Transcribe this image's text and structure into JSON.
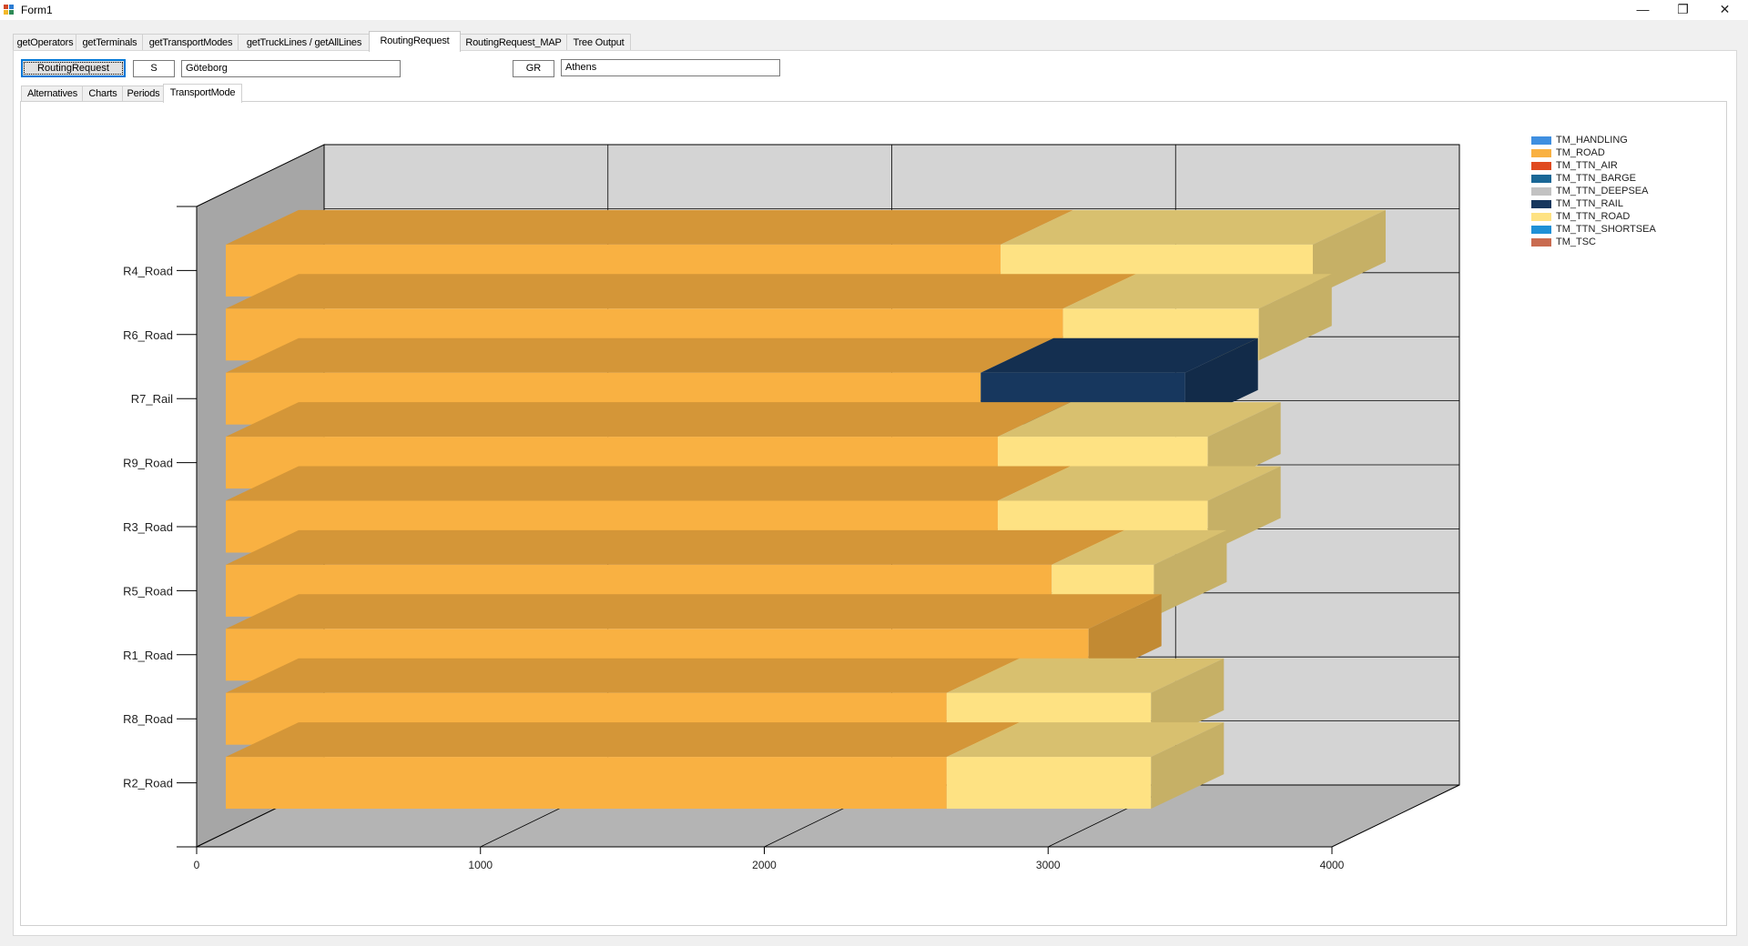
{
  "window": {
    "title": "Form1"
  },
  "tabs": [
    {
      "label": "getOperators"
    },
    {
      "label": "getTerminals"
    },
    {
      "label": "getTransportModes"
    },
    {
      "label": "getTruckLines / getAllLines"
    },
    {
      "label": "RoutingRequest"
    },
    {
      "label": "RoutingRequest_MAP"
    },
    {
      "label": "Tree Output"
    }
  ],
  "toolbar": {
    "routing_button": "RoutingRequest",
    "origin_country": "S",
    "origin_city": "Göteborg",
    "dest_country": "GR",
    "dest_city": "Athens"
  },
  "subtabs": [
    {
      "label": "Alternatives"
    },
    {
      "label": "Charts"
    },
    {
      "label": "Periods"
    },
    {
      "label": "TransportMode"
    }
  ],
  "legend": [
    {
      "label": "TM_HANDLING",
      "color": "#3f8fe0"
    },
    {
      "label": "TM_ROAD",
      "color": "#f9b142"
    },
    {
      "label": "TM_TTN_AIR",
      "color": "#e04a20"
    },
    {
      "label": "TM_TTN_BARGE",
      "color": "#1a6796"
    },
    {
      "label": "TM_TTN_DEEPSEA",
      "color": "#c2c2c2"
    },
    {
      "label": "TM_TTN_RAIL",
      "color": "#17375e"
    },
    {
      "label": "TM_TTN_ROAD",
      "color": "#fee283"
    },
    {
      "label": "TM_TTN_SHORTSEA",
      "color": "#1f90d6"
    },
    {
      "label": "TM_TSC",
      "color": "#c96b50"
    }
  ],
  "chart_data": {
    "type": "bar",
    "orientation": "horizontal",
    "stacked": true,
    "three_d": true,
    "categories": [
      "R4_Road",
      "R6_Road",
      "R7_Rail",
      "R9_Road",
      "R3_Road",
      "R5_Road",
      "R1_Road",
      "R8_Road",
      "R2_Road"
    ],
    "series": [
      {
        "name": "TM_ROAD",
        "color": "#f9b142",
        "values": [
          2730,
          2950,
          2660,
          2720,
          2720,
          2910,
          3040,
          2540,
          2540
        ]
      },
      {
        "name": "TM_TTN_RAIL",
        "color": "#17375e",
        "values": [
          0,
          0,
          720,
          0,
          0,
          0,
          0,
          0,
          0
        ]
      },
      {
        "name": "TM_TTN_ROAD",
        "color": "#fee283",
        "values": [
          1100,
          690,
          0,
          740,
          740,
          360,
          0,
          720,
          720
        ]
      }
    ],
    "xlim": [
      0,
      4000
    ],
    "xticks": [
      0,
      1000,
      2000,
      3000,
      4000
    ],
    "legend_position": "top-right",
    "grid": true
  }
}
